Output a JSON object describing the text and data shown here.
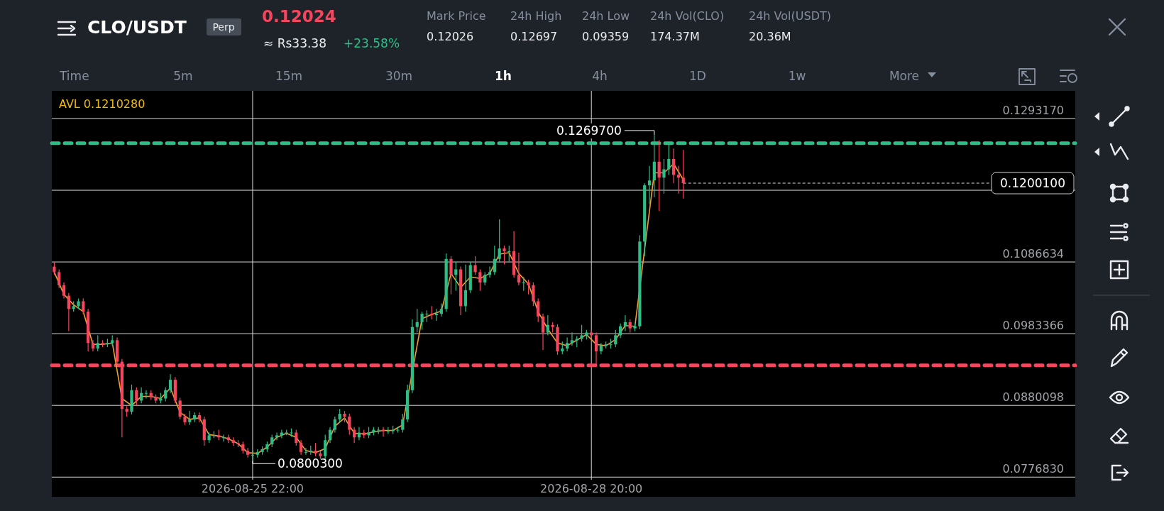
{
  "chart_data": {
    "type": "candlestick",
    "title": "CLO/USDT",
    "xlim": [
      "2026-08-24T04:30",
      "2026-09-02T00:00"
    ],
    "xticks": [
      {
        "value": "2026-08-25T22:00",
        "label": "2026-08-25 22:00"
      },
      {
        "value": "2026-08-28T20:00",
        "label": "2026-08-28 20:00"
      }
    ],
    "ylim": [
      0.0773,
      0.1333
    ],
    "yticks": [
      {
        "value": 0.077683,
        "label": "0.0776830"
      },
      {
        "value": 0.0880098,
        "label": "0.0880098"
      },
      {
        "value": 0.0983366,
        "label": "0.0983366"
      },
      {
        "value": 0.1086634,
        "label": "0.1086634"
      },
      {
        "value": 0.1189902,
        "label": null
      },
      {
        "value": 0.129317,
        "label": "0.1293170"
      }
    ],
    "grid": true,
    "colors": [
      "#f6465d",
      "#f6465d",
      "#f6465d",
      "#f6465d",
      "#2ebd85",
      "#2ebd85",
      "#f6465d",
      "#f6465d",
      "#f6465d",
      "#2ebd85",
      "#f6465d",
      "#2ebd85",
      "#2ebd85",
      "#f6465d",
      "#f6465d",
      "#f6465d",
      "#2ebd85",
      "#f6465d",
      "#2ebd85",
      "#2ebd85",
      "#f6465d",
      "#f6465d",
      "#2ebd85",
      "#2ebd85",
      "#2ebd85",
      "#f6465d",
      "#f6465d",
      "#f6465d",
      "#2ebd85",
      "#2ebd85",
      "#f6465d",
      "#f6465d",
      "#2ebd85",
      "#2ebd85",
      "#f6465d",
      "#2ebd85",
      "#f6465d",
      "#f6465d",
      "#f6465d",
      "#f6465d",
      "#f6465d",
      "#2ebd85",
      "#2ebd85",
      "#2ebd85",
      "#2ebd85",
      "#2ebd85",
      "#2ebd85",
      "#2ebd85",
      "#2ebd85",
      "#2ebd85",
      "#f6465d",
      "#f6465d",
      "#2ebd85",
      "#2ebd85",
      "#f6465d",
      "#f6465d",
      "#2ebd85",
      "#2ebd85",
      "#2ebd85",
      "#2ebd85",
      "#f6465d",
      "#f6465d",
      "#f6465d",
      "#2ebd85",
      "#f6465d",
      "#2ebd85",
      "#2ebd85",
      "#2ebd85",
      "#f6465d",
      "#2ebd85",
      "#2ebd85",
      "#2ebd85",
      "#2ebd85",
      "#2ebd85",
      "#2ebd85",
      "#2ebd85",
      "#2ebd85",
      "#2ebd85",
      "#f6465d",
      "#2ebd85",
      "#2ebd85",
      "#2ebd85",
      "#f6465d",
      "#2ebd85",
      "#f6465d",
      "#2ebd85",
      "#2ebd85",
      "#f6465d",
      "#f6465d",
      "#2ebd85",
      "#2ebd85",
      "#2ebd85",
      "#2ebd85",
      "#f6465d",
      "#2ebd85",
      "#f6465d",
      "#f6465d",
      "#2ebd85",
      "#f6465d",
      "#f6465d",
      "#f6465d",
      "#f6465d",
      "#2ebd85",
      "#f6465d",
      "#f6465d",
      "#2ebd85",
      "#2ebd85",
      "#2ebd85",
      "#2ebd85",
      "#2ebd85",
      "#2ebd85",
      "#f6465d",
      "#f6465d",
      "#2ebd85",
      "#2ebd85",
      "#2ebd85",
      "#2ebd85",
      "#2ebd85",
      "#2ebd85",
      "#f6465d",
      "#2ebd85",
      "#2ebd85",
      "#2ebd85",
      "#2ebd85",
      "#2ebd85",
      "#f6465d",
      "#2ebd85",
      "#2ebd85",
      "#f6465d",
      "#f6465d",
      "#f6465d"
    ],
    "x": [
      "2026-08-24T05:00",
      "2026-08-24T06:00",
      "2026-08-24T07:00",
      "2026-08-24T08:00",
      "2026-08-24T09:00",
      "2026-08-24T10:00",
      "2026-08-24T11:00",
      "2026-08-24T12:00",
      "2026-08-24T13:00",
      "2026-08-24T14:00",
      "2026-08-24T15:00",
      "2026-08-24T16:00",
      "2026-08-24T17:00",
      "2026-08-24T18:00",
      "2026-08-24T19:00",
      "2026-08-24T20:00",
      "2026-08-24T21:00",
      "2026-08-24T22:00",
      "2026-08-24T23:00",
      "2026-08-25T00:00",
      "2026-08-25T01:00",
      "2026-08-25T02:00",
      "2026-08-25T03:00",
      "2026-08-25T04:00",
      "2026-08-25T05:00",
      "2026-08-25T06:00",
      "2026-08-25T07:00",
      "2026-08-25T08:00",
      "2026-08-25T09:00",
      "2026-08-25T10:00",
      "2026-08-25T11:00",
      "2026-08-25T12:00",
      "2026-08-25T13:00",
      "2026-08-25T14:00",
      "2026-08-25T15:00",
      "2026-08-25T16:00",
      "2026-08-25T17:00",
      "2026-08-25T18:00",
      "2026-08-25T19:00",
      "2026-08-25T20:00",
      "2026-08-25T21:00",
      "2026-08-25T22:00",
      "2026-08-25T23:00",
      "2026-08-26T00:00",
      "2026-08-26T01:00",
      "2026-08-26T02:00",
      "2026-08-26T03:00",
      "2026-08-26T04:00",
      "2026-08-26T05:00",
      "2026-08-26T06:00",
      "2026-08-26T07:00",
      "2026-08-26T08:00",
      "2026-08-26T09:00",
      "2026-08-26T10:00",
      "2026-08-26T11:00",
      "2026-08-26T12:00",
      "2026-08-26T13:00",
      "2026-08-26T14:00",
      "2026-08-26T15:00",
      "2026-08-26T16:00",
      "2026-08-26T17:00",
      "2026-08-26T18:00",
      "2026-08-26T19:00",
      "2026-08-26T20:00",
      "2026-08-26T21:00",
      "2026-08-26T22:00",
      "2026-08-26T23:00",
      "2026-08-27T00:00",
      "2026-08-27T01:00",
      "2026-08-27T02:00",
      "2026-08-27T03:00",
      "2026-08-27T04:00",
      "2026-08-27T05:00",
      "2026-08-27T06:00",
      "2026-08-27T07:00",
      "2026-08-27T08:00",
      "2026-08-27T09:00",
      "2026-08-27T10:00",
      "2026-08-27T11:00",
      "2026-08-27T12:00",
      "2026-08-27T13:00",
      "2026-08-27T14:00",
      "2026-08-27T15:00",
      "2026-08-27T16:00",
      "2026-08-27T17:00",
      "2026-08-27T18:00",
      "2026-08-27T19:00",
      "2026-08-27T20:00",
      "2026-08-27T21:00",
      "2026-08-27T22:00",
      "2026-08-27T23:00",
      "2026-08-28T00:00",
      "2026-08-28T01:00",
      "2026-08-28T02:00",
      "2026-08-28T03:00",
      "2026-08-28T04:00",
      "2026-08-28T05:00",
      "2026-08-28T06:00",
      "2026-08-28T07:00",
      "2026-08-28T08:00",
      "2026-08-28T09:00",
      "2026-08-28T10:00",
      "2026-08-28T11:00",
      "2026-08-28T12:00",
      "2026-08-28T13:00",
      "2026-08-28T14:00",
      "2026-08-28T15:00",
      "2026-08-28T16:00",
      "2026-08-28T17:00",
      "2026-08-28T18:00",
      "2026-08-28T19:00",
      "2026-08-28T20:00",
      "2026-08-28T21:00",
      "2026-08-28T22:00",
      "2026-08-28T23:00",
      "2026-08-29T00:00",
      "2026-08-29T01:00",
      "2026-08-29T02:00",
      "2026-08-29T03:00",
      "2026-08-29T04:00",
      "2026-08-29T05:00",
      "2026-08-29T06:00",
      "2026-08-29T07:00",
      "2026-08-29T08:00",
      "2026-08-29T09:00",
      "2026-08-29T10:00",
      "2026-08-29T11:00",
      "2026-08-29T12:00",
      "2026-08-29T13:00",
      "2026-08-29T14:00",
      "2026-08-29T15:00"
    ],
    "ohlc": [
      [
        0.108,
        0.1086,
        0.1068,
        0.1072
      ],
      [
        0.1072,
        0.1076,
        0.1049,
        0.1053
      ],
      [
        0.1053,
        0.1057,
        0.1034,
        0.1038
      ],
      [
        0.1038,
        0.1042,
        0.0987,
        0.1019
      ],
      [
        0.1019,
        0.103,
        0.1015,
        0.1023
      ],
      [
        0.1023,
        0.1034,
        0.1019,
        0.103
      ],
      [
        0.103,
        0.1034,
        0.1011,
        0.1015
      ],
      [
        0.1015,
        0.1019,
        0.0958,
        0.097
      ],
      [
        0.097,
        0.0974,
        0.0958,
        0.0962
      ],
      [
        0.0962,
        0.0981,
        0.0958,
        0.097
      ],
      [
        0.097,
        0.0974,
        0.0964,
        0.0968
      ],
      [
        0.0968,
        0.0976,
        0.0964,
        0.097
      ],
      [
        0.097,
        0.0981,
        0.0966,
        0.0974
      ],
      [
        0.0974,
        0.0978,
        0.0939,
        0.0943
      ],
      [
        0.0943,
        0.0947,
        0.0834,
        0.0875
      ],
      [
        0.0875,
        0.0879,
        0.0864,
        0.0871
      ],
      [
        0.0871,
        0.091,
        0.0867,
        0.0902
      ],
      [
        0.0902,
        0.0906,
        0.0879,
        0.0887
      ],
      [
        0.0887,
        0.0906,
        0.0883,
        0.0898
      ],
      [
        0.0898,
        0.0902,
        0.089,
        0.0898
      ],
      [
        0.0898,
        0.0902,
        0.0888,
        0.0892
      ],
      [
        0.0892,
        0.0896,
        0.0883,
        0.0887
      ],
      [
        0.0887,
        0.0898,
        0.0883,
        0.089
      ],
      [
        0.089,
        0.0906,
        0.0886,
        0.0902
      ],
      [
        0.0902,
        0.0925,
        0.0898,
        0.0917
      ],
      [
        0.0917,
        0.0921,
        0.0883,
        0.0887
      ],
      [
        0.0887,
        0.0891,
        0.086,
        0.0864
      ],
      [
        0.0864,
        0.0868,
        0.0852,
        0.0856
      ],
      [
        0.0856,
        0.0872,
        0.0852,
        0.086
      ],
      [
        0.086,
        0.087,
        0.0856,
        0.0866
      ],
      [
        0.0866,
        0.087,
        0.0856,
        0.086
      ],
      [
        0.086,
        0.0864,
        0.0822,
        0.083
      ],
      [
        0.083,
        0.0841,
        0.0826,
        0.0837
      ],
      [
        0.0837,
        0.0843,
        0.0833,
        0.0837
      ],
      [
        0.0837,
        0.0845,
        0.083,
        0.0834
      ],
      [
        0.0834,
        0.0838,
        0.0828,
        0.0834
      ],
      [
        0.0834,
        0.0838,
        0.0826,
        0.083
      ],
      [
        0.083,
        0.0834,
        0.0822,
        0.0826
      ],
      [
        0.0826,
        0.083,
        0.082,
        0.0824
      ],
      [
        0.0824,
        0.0828,
        0.0811,
        0.0815
      ],
      [
        0.0815,
        0.0819,
        0.0805,
        0.0809
      ],
      [
        0.0809,
        0.0815,
        0.08003,
        0.0809
      ],
      [
        0.0809,
        0.0817,
        0.0805,
        0.0813
      ],
      [
        0.0813,
        0.0821,
        0.0809,
        0.0817
      ],
      [
        0.0817,
        0.0828,
        0.0813,
        0.0824
      ],
      [
        0.0824,
        0.0838,
        0.082,
        0.0834
      ],
      [
        0.0834,
        0.0841,
        0.083,
        0.0837
      ],
      [
        0.0837,
        0.0845,
        0.0833,
        0.0841
      ],
      [
        0.0841,
        0.0845,
        0.0837,
        0.0841
      ],
      [
        0.0841,
        0.0847,
        0.0835,
        0.0841
      ],
      [
        0.0841,
        0.0845,
        0.0822,
        0.0826
      ],
      [
        0.0826,
        0.083,
        0.0809,
        0.0813
      ],
      [
        0.0813,
        0.0819,
        0.0809,
        0.0813
      ],
      [
        0.0813,
        0.0822,
        0.0809,
        0.0815
      ],
      [
        0.0815,
        0.0826,
        0.0807,
        0.0811
      ],
      [
        0.0811,
        0.0815,
        0.0803,
        0.0807
      ],
      [
        0.0807,
        0.0838,
        0.0803,
        0.083
      ],
      [
        0.083,
        0.0849,
        0.0826,
        0.0845
      ],
      [
        0.0845,
        0.0864,
        0.0841,
        0.086
      ],
      [
        0.086,
        0.0875,
        0.0856,
        0.0868
      ],
      [
        0.0868,
        0.0872,
        0.0856,
        0.0864
      ],
      [
        0.0864,
        0.0868,
        0.0838,
        0.0845
      ],
      [
        0.0845,
        0.0849,
        0.0826,
        0.0834
      ],
      [
        0.0834,
        0.0849,
        0.083,
        0.0841
      ],
      [
        0.0841,
        0.0845,
        0.0833,
        0.0837
      ],
      [
        0.0837,
        0.0849,
        0.0833,
        0.0841
      ],
      [
        0.0841,
        0.0849,
        0.0837,
        0.0845
      ],
      [
        0.0845,
        0.0849,
        0.0839,
        0.0845
      ],
      [
        0.0845,
        0.0849,
        0.0835,
        0.0843
      ],
      [
        0.0843,
        0.0849,
        0.0839,
        0.0843
      ],
      [
        0.0843,
        0.0851,
        0.0839,
        0.0845
      ],
      [
        0.0845,
        0.0849,
        0.0841,
        0.0845
      ],
      [
        0.0845,
        0.0868,
        0.0841,
        0.086
      ],
      [
        0.086,
        0.091,
        0.0856,
        0.0902
      ],
      [
        0.0902,
        0.1004,
        0.0898,
        0.0993
      ],
      [
        0.0993,
        0.1019,
        0.0985,
        0.1
      ],
      [
        0.1,
        0.1015,
        0.0989,
        0.1012
      ],
      [
        0.1012,
        0.1017,
        0.1,
        0.1012
      ],
      [
        0.1012,
        0.1023,
        0.1004,
        0.101
      ],
      [
        0.101,
        0.1019,
        0.1002,
        0.1012
      ],
      [
        0.1012,
        0.1027,
        0.1008,
        0.1019
      ],
      [
        0.1019,
        0.1099,
        0.1015,
        0.1091
      ],
      [
        0.1091,
        0.1095,
        0.104,
        0.1068
      ],
      [
        0.1068,
        0.1087,
        0.1045,
        0.1076
      ],
      [
        0.1076,
        0.108,
        0.101,
        0.1023
      ],
      [
        0.1023,
        0.1083,
        0.1015,
        0.1046
      ],
      [
        0.1046,
        0.1087,
        0.1042,
        0.1082
      ],
      [
        0.1082,
        0.1095,
        0.1068,
        0.1072
      ],
      [
        0.1072,
        0.1076,
        0.1045,
        0.1057
      ],
      [
        0.1057,
        0.1072,
        0.1053,
        0.1068
      ],
      [
        0.1068,
        0.108,
        0.1064,
        0.1072
      ],
      [
        0.1072,
        0.111,
        0.1068,
        0.1091
      ],
      [
        0.1091,
        0.1148,
        0.1087,
        0.1106
      ],
      [
        0.1106,
        0.111,
        0.1083,
        0.1102
      ],
      [
        0.1102,
        0.111,
        0.1087,
        0.1102
      ],
      [
        0.1102,
        0.1131,
        0.1064,
        0.1068
      ],
      [
        0.1068,
        0.11,
        0.1053,
        0.1057
      ],
      [
        0.1057,
        0.1065,
        0.1045,
        0.1057
      ],
      [
        0.1057,
        0.1061,
        0.104,
        0.1053
      ],
      [
        0.1053,
        0.1057,
        0.1023,
        0.103
      ],
      [
        0.103,
        0.1034,
        0.1,
        0.1008
      ],
      [
        0.1008,
        0.1012,
        0.096,
        0.0985
      ],
      [
        0.0985,
        0.101,
        0.0981,
        0.0996
      ],
      [
        0.0996,
        0.1,
        0.0985,
        0.0993
      ],
      [
        0.0993,
        0.0997,
        0.0953,
        0.0958
      ],
      [
        0.0958,
        0.0972,
        0.0954,
        0.0962
      ],
      [
        0.0962,
        0.0978,
        0.0958,
        0.097
      ],
      [
        0.097,
        0.0985,
        0.0966,
        0.0974
      ],
      [
        0.0974,
        0.098,
        0.0964,
        0.0976
      ],
      [
        0.0976,
        0.0996,
        0.0972,
        0.0981
      ],
      [
        0.0981,
        0.0989,
        0.0975,
        0.0985
      ],
      [
        0.0985,
        0.0989,
        0.0977,
        0.0981
      ],
      [
        0.0981,
        0.0985,
        0.0939,
        0.0958
      ],
      [
        0.0958,
        0.097,
        0.0954,
        0.0966
      ],
      [
        0.0966,
        0.0972,
        0.0962,
        0.0968
      ],
      [
        0.0968,
        0.0976,
        0.0962,
        0.0968
      ],
      [
        0.0968,
        0.0989,
        0.0964,
        0.0981
      ],
      [
        0.0981,
        0.0998,
        0.0977,
        0.0994
      ],
      [
        0.0994,
        0.101,
        0.0987,
        0.1
      ],
      [
        0.1,
        0.1004,
        0.0985,
        0.0991
      ],
      [
        0.0991,
        0.0998,
        0.0987,
        0.0994
      ],
      [
        0.0994,
        0.1125,
        0.099,
        0.1116
      ],
      [
        0.1116,
        0.12,
        0.1095,
        0.1197
      ],
      [
        0.1197,
        0.1225,
        0.117,
        0.1204
      ],
      [
        0.1204,
        0.12697,
        0.118,
        0.1231
      ],
      [
        0.1231,
        0.1262,
        0.116,
        0.1208
      ],
      [
        0.1208,
        0.1235,
        0.1185,
        0.122
      ],
      [
        0.122,
        0.1258,
        0.1212,
        0.1235
      ],
      [
        0.1235,
        0.125,
        0.12,
        0.1212
      ],
      [
        0.1212,
        0.1225,
        0.1185,
        0.1208
      ],
      [
        0.1208,
        0.1248,
        0.1178,
        0.12001
      ]
    ],
    "series": [
      {
        "type": "line",
        "color": "#f0a030",
        "x": [
          "2026-08-24T05:00",
          "2026-08-24T07:00",
          "2026-08-24T09:00",
          "2026-08-24T11:00",
          "2026-08-24T13:00",
          "2026-08-24T15:00",
          "2026-08-24T17:00",
          "2026-08-24T19:00",
          "2026-08-24T21:00",
          "2026-08-24T23:00",
          "2026-08-25T01:00",
          "2026-08-25T03:00",
          "2026-08-25T05:00",
          "2026-08-25T07:00",
          "2026-08-25T09:00",
          "2026-08-25T11:00",
          "2026-08-25T13:00",
          "2026-08-25T15:00",
          "2026-08-25T17:00",
          "2026-08-25T19:00",
          "2026-08-25T21:00",
          "2026-08-25T23:00",
          "2026-08-26T01:00",
          "2026-08-26T03:00",
          "2026-08-26T05:00",
          "2026-08-26T07:00",
          "2026-08-26T09:00",
          "2026-08-26T11:00",
          "2026-08-26T13:00",
          "2026-08-26T15:00",
          "2026-08-26T17:00",
          "2026-08-26T19:00",
          "2026-08-26T21:00",
          "2026-08-26T23:00",
          "2026-08-27T01:00",
          "2026-08-27T03:00",
          "2026-08-27T05:00",
          "2026-08-27T07:00",
          "2026-08-27T09:00",
          "2026-08-27T11:00",
          "2026-08-27T13:00",
          "2026-08-27T15:00",
          "2026-08-27T17:00",
          "2026-08-27T19:00",
          "2026-08-27T21:00",
          "2026-08-27T23:00",
          "2026-08-28T01:00",
          "2026-08-28T03:00",
          "2026-08-28T05:00",
          "2026-08-28T07:00",
          "2026-08-28T09:00",
          "2026-08-28T11:00",
          "2026-08-28T13:00",
          "2026-08-28T15:00",
          "2026-08-28T17:00",
          "2026-08-28T19:00",
          "2026-08-28T21:00",
          "2026-08-28T23:00",
          "2026-08-29T01:00",
          "2026-08-29T03:00",
          "2026-08-29T05:00",
          "2026-08-29T07:00",
          "2026-08-29T09:00",
          "2026-08-29T11:00",
          "2026-08-29T13:00",
          "2026-08-29T15:00"
        ],
        "values": [
          0.1072,
          0.104,
          0.1025,
          0.1015,
          0.0968,
          0.0968,
          0.097,
          0.089,
          0.088,
          0.0893,
          0.0893,
          0.089,
          0.0905,
          0.087,
          0.086,
          0.0862,
          0.0838,
          0.0836,
          0.0832,
          0.0825,
          0.0812,
          0.0811,
          0.082,
          0.0834,
          0.084,
          0.0834,
          0.0815,
          0.0812,
          0.0818,
          0.085,
          0.0862,
          0.084,
          0.0839,
          0.0842,
          0.0844,
          0.0844,
          0.0852,
          null,
          0.1005,
          0.1011,
          0.1016,
          0.107,
          0.105,
          0.1065,
          0.1063,
          0.107,
          0.1098,
          0.11,
          0.107,
          0.1055,
          0.1015,
          0.099,
          0.097,
          0.0966,
          0.0974,
          0.0982,
          0.0968,
          0.0966,
          0.0975,
          0.0995,
          0.0994,
          null,
          0.1215,
          0.1215,
          0.1228,
          0.1205
        ]
      }
    ],
    "ref_lines": [
      {
        "axis": "y",
        "value": 0.12577,
        "color": "#2ebd85",
        "line_style": "dashed"
      },
      {
        "axis": "y",
        "value": 0.09378,
        "color": "#f6465d",
        "line_style": "dashed"
      },
      {
        "axis": "y",
        "value": 0.12001,
        "label": "0.1200100",
        "color": "#cfd3d8",
        "line_style": "dotted"
      }
    ],
    "annotations": [
      "Perp",
      "0.12024",
      "≈ Rs33.38",
      "+23.58%",
      "Mark Price",
      "0.12026",
      "24h High",
      "0.12697",
      "24h Low",
      "0.09359",
      "24h Vol(CLO)",
      "174.37M",
      "24h Vol(USDT)",
      "20.36M",
      "Time",
      "5m",
      "15m",
      "30m",
      "1h",
      "4h",
      "1D",
      "1w",
      "More",
      "AVL 0.1210280",
      {
        "text": "0.1269700",
        "x": "2026-08-29T09:00",
        "y": 0.12697
      },
      {
        "text": "0.0800300",
        "x": "2026-08-25T22:00",
        "y": 0.08003
      }
    ]
  }
}
